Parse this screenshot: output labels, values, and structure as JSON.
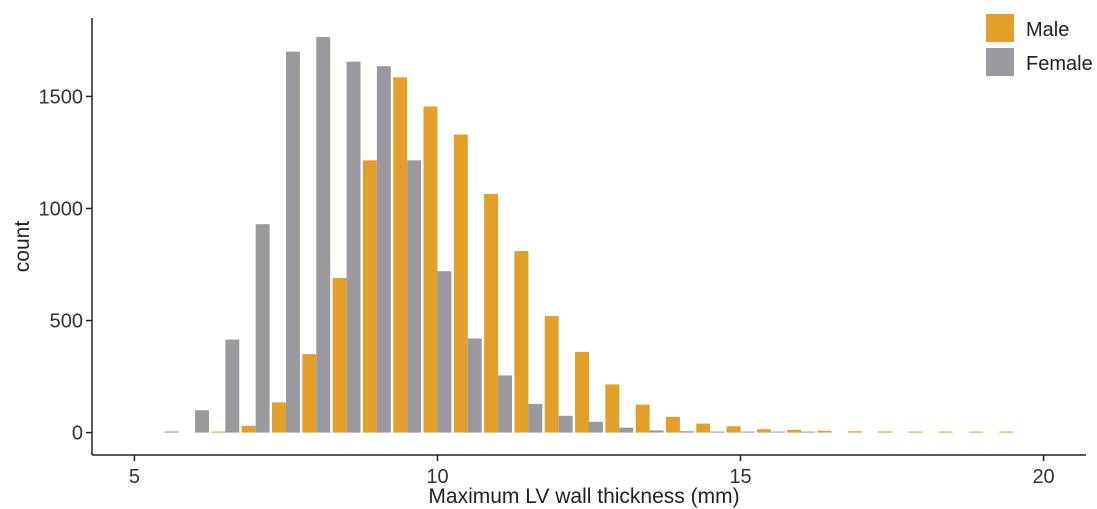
{
  "chart_data": {
    "type": "bar",
    "xlabel": "Maximum LV wall thickness (mm)",
    "ylabel": "count",
    "xlim": [
      4.3,
      20.7
    ],
    "ylim": [
      -100,
      1850
    ],
    "xticks": [
      5,
      10,
      15,
      20
    ],
    "yticks": [
      0,
      500,
      1000,
      1500
    ],
    "bin_width": 0.5,
    "legend_position": "top-right",
    "series": [
      {
        "name": "Male",
        "color": "#E29F2A",
        "x": [
          5.5,
          6.0,
          6.5,
          7.0,
          7.5,
          8.0,
          8.5,
          9.0,
          9.5,
          10.0,
          10.5,
          11.0,
          11.5,
          12.0,
          12.5,
          13.0,
          13.5,
          14.0,
          14.5,
          15.0,
          15.5,
          16.0,
          16.5,
          17.0,
          17.5,
          18.0,
          18.5,
          19.0,
          19.5
        ],
        "values": [
          0,
          0,
          3,
          30,
          135,
          350,
          690,
          1215,
          1585,
          1455,
          1330,
          1065,
          810,
          520,
          360,
          215,
          125,
          70,
          40,
          28,
          15,
          12,
          8,
          6,
          5,
          4,
          3,
          2,
          2
        ]
      },
      {
        "name": "Female",
        "color": "#9A9A9E",
        "x": [
          5.5,
          6.0,
          6.5,
          7.0,
          7.5,
          8.0,
          8.5,
          9.0,
          9.5,
          10.0,
          10.5,
          11.0,
          11.5,
          12.0,
          12.5,
          13.0,
          13.5,
          14.0,
          14.5,
          15.0,
          15.5,
          16.0,
          16.5,
          17.0,
          17.5,
          18.0,
          18.5,
          19.0,
          19.5
        ],
        "values": [
          5,
          100,
          415,
          930,
          1700,
          1765,
          1655,
          1635,
          1215,
          720,
          420,
          255,
          128,
          75,
          48,
          22,
          10,
          6,
          3,
          2,
          1,
          1,
          0,
          0,
          0,
          0,
          0,
          0,
          0
        ]
      }
    ]
  }
}
